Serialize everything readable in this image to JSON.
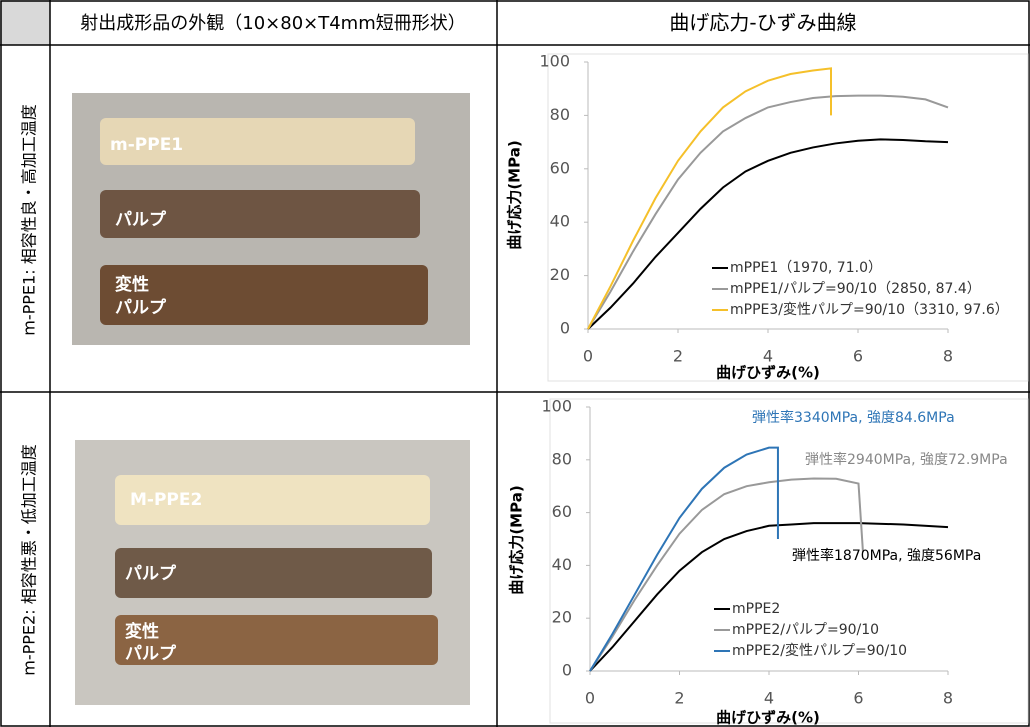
{
  "table": {
    "header": [
      "射出成形品の外観（10×80×T4mm短冊形状）",
      "曲げ応力-ひずみ曲線"
    ],
    "rows": [
      {
        "label": "m-PPE1: 相容性良・高加工温度",
        "photo_labels": [
          [
            "m-PPE1"
          ],
          [
            "パルプ"
          ],
          [
            "変性",
            "パルプ"
          ]
        ]
      },
      {
        "label": "m-PPE2: 相容性悪・低加工温度",
        "photo_labels": [
          [
            "M-PPE2"
          ],
          [
            "パルプ"
          ],
          [
            "変性",
            "パルプ"
          ]
        ]
      }
    ]
  },
  "chart_data": [
    {
      "type": "line",
      "y_label": "曲げ応力(MPa)",
      "x_label": "曲げひずみ(%)",
      "xlim": [
        0,
        8
      ],
      "xticks": [
        0,
        2,
        4,
        6,
        8
      ],
      "ylim": [
        0,
        100
      ],
      "yticks": [
        0,
        20,
        40,
        60,
        80,
        100
      ],
      "series": [
        {
          "name": "mPPE1（1970, 71.0）",
          "color": "#000000",
          "x": [
            0,
            0.5,
            1,
            1.5,
            2,
            2.5,
            3,
            3.5,
            4,
            4.5,
            5,
            5.5,
            6,
            6.5,
            7,
            7.5,
            8
          ],
          "values": [
            0,
            8,
            17,
            27,
            36,
            45,
            53,
            59,
            63,
            66,
            68,
            69.5,
            70.5,
            71,
            70.8,
            70.3,
            70
          ]
        },
        {
          "name": "mPPE1/パルプ=90/10（2850, 87.4）",
          "color": "#999999",
          "x": [
            0,
            0.5,
            1,
            1.5,
            2,
            2.5,
            3,
            3.5,
            4,
            4.5,
            5,
            5.5,
            6,
            6.5,
            7,
            7.5,
            8
          ],
          "values": [
            0,
            14,
            29,
            43,
            56,
            66,
            74,
            79,
            83,
            85,
            86.5,
            87.2,
            87.4,
            87.4,
            87,
            86,
            83
          ]
        },
        {
          "name": "mPPE3/変性パルプ=90/10（3310, 97.6）",
          "color": "#f5c02a",
          "x": [
            0,
            0.5,
            1,
            1.5,
            2,
            2.5,
            3,
            3.5,
            4,
            4.5,
            5,
            5.4,
            5.4
          ],
          "values": [
            0,
            16,
            33,
            49,
            63,
            74,
            83,
            89,
            93,
            95.5,
            96.8,
            97.6,
            80
          ]
        }
      ],
      "annotations": []
    },
    {
      "type": "line",
      "y_label": "曲げ応力(MPa)",
      "x_label": "曲げひずみ(%)",
      "xlim": [
        0,
        8
      ],
      "xticks": [
        0,
        2,
        4,
        6,
        8
      ],
      "ylim": [
        0,
        100
      ],
      "yticks": [
        0,
        20,
        40,
        60,
        80,
        100
      ],
      "series": [
        {
          "name": "mPPE2",
          "color": "#000000",
          "x": [
            0,
            0.5,
            1,
            1.5,
            2,
            2.5,
            3,
            3.5,
            4,
            4.5,
            5,
            6,
            7,
            8
          ],
          "values": [
            0,
            9,
            19,
            29,
            38,
            45,
            50,
            53,
            55,
            55.5,
            56,
            56,
            55.5,
            54.5
          ]
        },
        {
          "name": "mPPE2/パルプ=90/10",
          "color": "#999999",
          "x": [
            0,
            0.5,
            1,
            1.5,
            2,
            2.5,
            3,
            3.5,
            4,
            4.5,
            5,
            5.5,
            6,
            6.1
          ],
          "values": [
            0,
            13,
            27,
            40,
            52,
            61,
            67,
            70,
            71.5,
            72.5,
            72.9,
            72.8,
            71,
            45
          ]
        },
        {
          "name": "mPPE2/変性パルプ=90/10",
          "color": "#2e75b6",
          "x": [
            0,
            0.5,
            1,
            1.5,
            2,
            2.5,
            3,
            3.5,
            4,
            4.2,
            4.2
          ],
          "values": [
            0,
            14,
            29,
            44,
            58,
            69,
            77,
            82,
            84.6,
            84.6,
            50
          ]
        }
      ],
      "annotations": [
        {
          "text": "弾性率3340MPa, 強度84.6MPa",
          "color": "#2e75b6"
        },
        {
          "text": "弾性率2940MPa, 強度72.9MPa",
          "color": "#888888"
        },
        {
          "text": "弾性率1870MPa, 強度56MPa",
          "color": "#000000"
        }
      ]
    }
  ]
}
